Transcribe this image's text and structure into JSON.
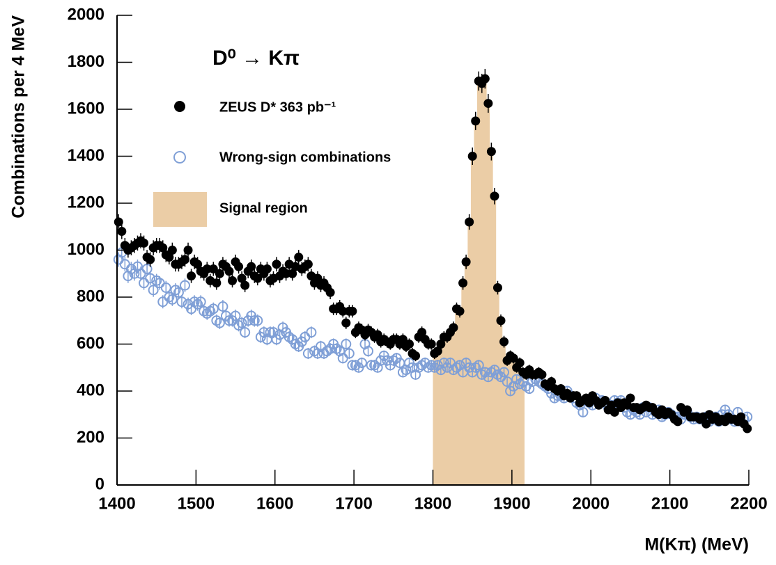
{
  "chart_data": {
    "type": "scatter",
    "title": "D⁰ → Kπ",
    "x_label": "M(Kπ) (MeV)",
    "y_label": "Combinations per 4 MeV",
    "xlim": [
      1400,
      2200
    ],
    "ylim": [
      0,
      2000
    ],
    "xticks": [
      1400,
      1500,
      1600,
      1700,
      1800,
      1900,
      2000,
      2100,
      2200
    ],
    "yticks": [
      0,
      200,
      400,
      600,
      800,
      1000,
      1200,
      1400,
      1600,
      1800,
      2000
    ],
    "grid": false,
    "signal_region": {
      "name": "Signal region",
      "color": "#ebcda6",
      "range": [
        1800,
        1916
      ]
    },
    "x": [
      1402,
      1406,
      1410,
      1414,
      1418,
      1422,
      1426,
      1430,
      1434,
      1438,
      1442,
      1446,
      1450,
      1454,
      1458,
      1462,
      1466,
      1470,
      1474,
      1478,
      1482,
      1486,
      1490,
      1494,
      1498,
      1502,
      1506,
      1510,
      1514,
      1518,
      1522,
      1526,
      1530,
      1534,
      1538,
      1542,
      1546,
      1550,
      1554,
      1558,
      1562,
      1566,
      1570,
      1574,
      1578,
      1582,
      1586,
      1590,
      1594,
      1598,
      1602,
      1606,
      1610,
      1614,
      1618,
      1622,
      1626,
      1630,
      1634,
      1638,
      1642,
      1646,
      1650,
      1654,
      1658,
      1662,
      1666,
      1670,
      1674,
      1678,
      1682,
      1686,
      1690,
      1694,
      1698,
      1702,
      1706,
      1710,
      1714,
      1718,
      1722,
      1726,
      1730,
      1734,
      1738,
      1742,
      1746,
      1750,
      1754,
      1758,
      1762,
      1766,
      1770,
      1774,
      1778,
      1782,
      1786,
      1790,
      1794,
      1798,
      1802,
      1806,
      1810,
      1814,
      1818,
      1822,
      1826,
      1830,
      1834,
      1838,
      1842,
      1846,
      1850,
      1854,
      1858,
      1862,
      1866,
      1870,
      1874,
      1878,
      1882,
      1886,
      1890,
      1894,
      1898,
      1902,
      1906,
      1910,
      1914,
      1918,
      1922,
      1926,
      1930,
      1934,
      1938,
      1942,
      1946,
      1950,
      1954,
      1958,
      1962,
      1966,
      1970,
      1974,
      1978,
      1982,
      1986,
      1990,
      1994,
      1998,
      2002,
      2006,
      2010,
      2014,
      2018,
      2022,
      2026,
      2030,
      2034,
      2038,
      2042,
      2046,
      2050,
      2054,
      2058,
      2062,
      2066,
      2070,
      2074,
      2078,
      2082,
      2086,
      2090,
      2094,
      2098,
      2102,
      2106,
      2110,
      2114,
      2118,
      2122,
      2126,
      2130,
      2134,
      2138,
      2142,
      2146,
      2150,
      2154,
      2158,
      2162,
      2166,
      2170,
      2174,
      2178,
      2182,
      2186,
      2190,
      2194,
      2198
    ],
    "series": [
      {
        "name": "ZEUS D* 363 pb⁻¹",
        "color": "#000000",
        "marker": "filled",
        "values": [
          1120,
          1080,
          1020,
          1000,
          1010,
          1020,
          1030,
          1040,
          1030,
          970,
          960,
          1010,
          1020,
          1020,
          1010,
          980,
          970,
          1000,
          940,
          940,
          950,
          960,
          1000,
          890,
          950,
          940,
          910,
          900,
          920,
          870,
          920,
          860,
          900,
          940,
          930,
          910,
          870,
          950,
          930,
          880,
          850,
          910,
          930,
          890,
          880,
          920,
          900,
          920,
          870,
          880,
          940,
          890,
          910,
          900,
          940,
          900,
          930,
          970,
          920,
          930,
          940,
          890,
          860,
          880,
          850,
          860,
          840,
          820,
          750,
          750,
          760,
          740,
          690,
          740,
          740,
          650,
          670,
          660,
          640,
          660,
          650,
          630,
          640,
          610,
          620,
          610,
          600,
          620,
          620,
          600,
          620,
          590,
          600,
          560,
          550,
          630,
          650,
          620,
          600,
          600,
          560,
          570,
          600,
          630,
          630,
          650,
          670,
          750,
          740,
          860,
          950,
          1120,
          1400,
          1550,
          1720,
          1710,
          1730,
          1625,
          1420,
          1230,
          840,
          700,
          610,
          530,
          550,
          540,
          500,
          520,
          480,
          470,
          490,
          470,
          470,
          480,
          470,
          430,
          420,
          440,
          410,
          400,
          410,
          380,
          390,
          370,
          380,
          380,
          350,
          360,
          370,
          350,
          380,
          360,
          340,
          350,
          360,
          320,
          340,
          310,
          350,
          330,
          350,
          340,
          370,
          330,
          330,
          320,
          330,
          340,
          330,
          330,
          310,
          300,
          320,
          300,
          310,
          300,
          280,
          270,
          330,
          310,
          320,
          290,
          290,
          290,
          280,
          290,
          260,
          300,
          280,
          290,
          270,
          280,
          270,
          290,
          280,
          280,
          270,
          290,
          260,
          240
        ],
        "errors": [
          33,
          33,
          32,
          32,
          32,
          32,
          32,
          32,
          32,
          31,
          31,
          32,
          32,
          32,
          32,
          31,
          31,
          32,
          31,
          31,
          31,
          31,
          32,
          30,
          31,
          31,
          30,
          30,
          30,
          29,
          30,
          29,
          30,
          31,
          30,
          30,
          29,
          31,
          30,
          30,
          29,
          30,
          30,
          30,
          30,
          30,
          30,
          30,
          29,
          30,
          31,
          30,
          30,
          30,
          31,
          30,
          30,
          31,
          30,
          30,
          31,
          30,
          29,
          30,
          29,
          29,
          29,
          29,
          27,
          27,
          28,
          27,
          26,
          27,
          27,
          25,
          26,
          26,
          25,
          26,
          25,
          25,
          25,
          25,
          25,
          25,
          24,
          25,
          25,
          24,
          25,
          24,
          24,
          24,
          23,
          25,
          25,
          25,
          24,
          24,
          24,
          24,
          24,
          25,
          25,
          25,
          26,
          27,
          27,
          29,
          31,
          33,
          37,
          39,
          41,
          41,
          42,
          40,
          38,
          35,
          29,
          26,
          25,
          23,
          23,
          23,
          22,
          23,
          22,
          22,
          22,
          22,
          22,
          22,
          22,
          21,
          20,
          21,
          20,
          20,
          20,
          19,
          20,
          19,
          19,
          19,
          19,
          19,
          19,
          19,
          19,
          19,
          18,
          19,
          19,
          18,
          18,
          18,
          19,
          18,
          19,
          18,
          19,
          18,
          18,
          18,
          18,
          18,
          18,
          18,
          18,
          17,
          18,
          17,
          18,
          17,
          17,
          16,
          18,
          18,
          18,
          17,
          17,
          17,
          17,
          17,
          16,
          17,
          17,
          17,
          16,
          17,
          16,
          17,
          17,
          17,
          16,
          17,
          16,
          15
        ]
      },
      {
        "name": "Wrong-sign combinations",
        "color": "#7f9fd6",
        "marker": "open",
        "values": [
          960,
          990,
          940,
          890,
          920,
          900,
          930,
          900,
          860,
          920,
          880,
          830,
          870,
          860,
          780,
          840,
          800,
          790,
          830,
          820,
          780,
          850,
          770,
          750,
          780,
          770,
          780,
          740,
          730,
          740,
          750,
          700,
          690,
          760,
          720,
          700,
          700,
          720,
          680,
          690,
          650,
          700,
          720,
          700,
          700,
          630,
          650,
          620,
          650,
          650,
          620,
          640,
          670,
          650,
          630,
          620,
          600,
          590,
          610,
          630,
          560,
          650,
          570,
          560,
          590,
          560,
          570,
          580,
          600,
          580,
          570,
          540,
          600,
          560,
          510,
          510,
          500,
          520,
          600,
          570,
          510,
          510,
          500,
          530,
          550,
          530,
          510,
          530,
          540,
          520,
          480,
          490,
          520,
          500,
          470,
          500,
          510,
          520,
          500,
          510,
          500,
          510,
          490,
          520,
          500,
          520,
          490,
          500,
          510,
          480,
          520,
          500,
          480,
          500,
          510,
          470,
          480,
          460,
          480,
          490,
          470,
          460,
          480,
          440,
          400,
          420,
          450,
          430,
          440,
          420,
          410,
          440,
          450,
          440,
          430,
          420,
          410,
          390,
          370,
          380,
          380,
          370,
          400,
          380,
          370,
          350,
          340,
          310,
          360,
          350,
          340,
          370,
          350,
          360,
          350,
          330,
          340,
          360,
          350,
          360,
          330,
          310,
          300,
          320,
          310,
          300,
          330,
          310,
          330,
          300,
          310,
          320,
          290,
          300,
          310,
          300,
          290,
          290,
          280,
          300,
          310,
          290,
          280,
          290,
          280,
          280,
          290,
          270,
          280,
          290,
          270,
          300,
          320,
          300,
          280,
          270,
          310,
          270,
          280,
          290
        ],
        "errors": [
          31,
          31,
          31,
          30,
          30,
          30,
          30,
          30,
          29,
          30,
          30,
          29,
          29,
          29,
          28,
          29,
          28,
          28,
          29,
          29,
          28,
          29,
          28,
          27,
          28,
          28,
          28,
          27,
          27,
          27,
          27,
          26,
          26,
          28,
          27,
          26,
          26,
          27,
          26,
          26,
          25,
          26,
          27,
          26,
          26,
          25,
          25,
          25,
          25,
          25,
          25,
          25,
          26,
          25,
          25,
          25,
          24,
          24,
          25,
          25,
          24,
          25,
          24,
          24,
          24,
          24,
          24,
          24,
          24,
          24,
          24,
          23,
          24,
          24,
          23,
          23,
          22,
          23,
          24,
          24,
          23,
          23,
          22,
          23,
          23,
          23,
          23,
          23,
          23,
          23,
          22,
          22,
          23,
          22,
          22,
          22,
          23,
          23,
          22,
          23,
          22,
          23,
          22,
          23,
          22,
          23,
          22,
          22,
          23,
          22,
          23,
          22,
          22,
          22,
          23,
          22,
          22,
          21,
          22,
          22,
          22,
          21,
          22,
          21,
          20,
          20,
          21,
          21,
          21,
          20,
          20,
          21,
          21,
          21,
          21,
          20,
          20,
          20,
          19,
          19,
          19,
          19,
          20,
          19,
          19,
          19,
          18,
          18,
          19,
          19,
          18,
          19,
          19,
          19,
          19,
          18,
          18,
          19,
          19,
          19,
          18,
          18,
          17,
          18,
          18,
          17,
          18,
          18,
          18,
          17,
          18,
          18,
          17,
          17,
          18,
          17,
          17,
          17,
          17,
          17,
          18,
          17,
          17,
          17,
          17,
          17,
          17,
          16,
          17,
          17,
          16,
          17,
          18,
          17,
          17,
          16,
          18,
          16,
          17,
          17
        ]
      }
    ]
  }
}
